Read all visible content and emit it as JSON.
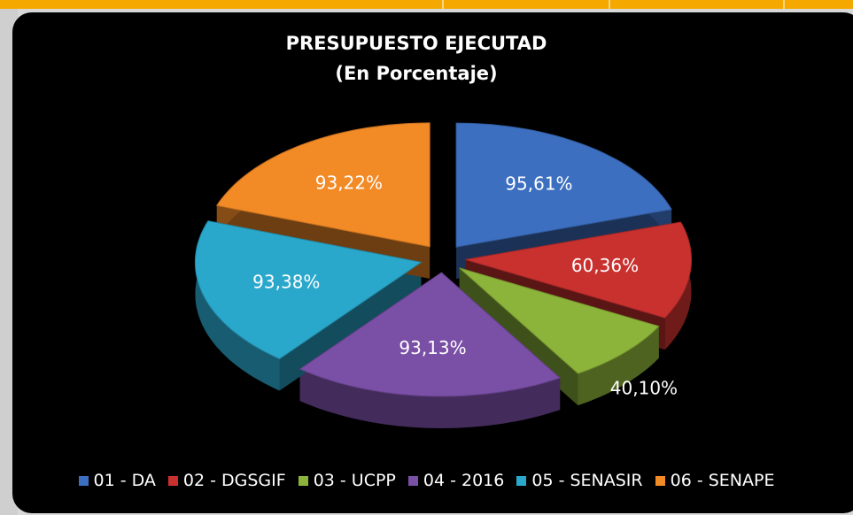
{
  "chart_data": {
    "type": "pie",
    "title": "PRESUPUESTO EJECUTAD",
    "subtitle": "(En Porcentaje)",
    "categories": [
      "01 - DA",
      "02 - DGSGIF",
      "03 - UCPP",
      "04 - 2016",
      "05 - SENASIR",
      "06 - SENAPE"
    ],
    "values": [
      95.61,
      60.36,
      40.1,
      93.13,
      93.38,
      93.22
    ],
    "value_labels": [
      "95,61%",
      "60,36%",
      "40,10%",
      "93,13%",
      "93,38%",
      "93,22%"
    ],
    "colors": [
      "#3d6fc0",
      "#c9312f",
      "#8db43a",
      "#7a4fa6",
      "#2aa8cc",
      "#f28a26"
    ]
  }
}
